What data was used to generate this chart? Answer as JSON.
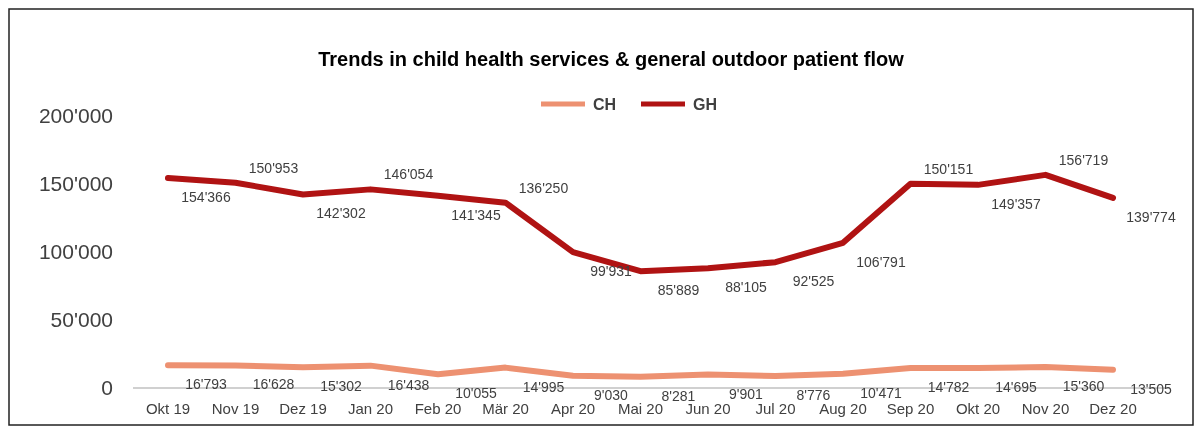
{
  "chart_data": {
    "type": "line",
    "title": "Trends in child health services & general outdoor patient flow",
    "categories": [
      "Okt 19",
      "Nov 19",
      "Dez 19",
      "Jan 20",
      "Feb 20",
      "Mär 20",
      "Apr 20",
      "Mai 20",
      "Jun 20",
      "Jul 20",
      "Aug 20",
      "Sep 20",
      "Okt 20",
      "Nov 20",
      "Dez 20"
    ],
    "series": [
      {
        "name": "CH",
        "color": "#ed9171",
        "values": [
          16793,
          16628,
          15302,
          16438,
          10055,
          14995,
          9030,
          8281,
          9901,
          8776,
          10471,
          14782,
          14695,
          15360,
          13505
        ],
        "value_labels": [
          "16'793",
          "16'628",
          "15'302",
          "16'438",
          "10'055",
          "14'995",
          "9'030",
          "8'281",
          "9'901",
          "8'776",
          "10'471",
          "14'782",
          "14'695",
          "15'360",
          "13'505"
        ]
      },
      {
        "name": "GH",
        "color": "#b01313",
        "values": [
          154366,
          150953,
          142302,
          146054,
          141345,
          136250,
          99931,
          85889,
          88105,
          92525,
          106791,
          150151,
          149357,
          156719,
          139774
        ],
        "value_labels": [
          "154'366",
          "150'953",
          "142'302",
          "146'054",
          "141'345",
          "136'250",
          "99'931",
          "85'889",
          "88'105",
          "92'525",
          "106'791",
          "150'151",
          "149'357",
          "156'719",
          "139'774"
        ]
      }
    ],
    "ylim": [
      0,
      200000
    ],
    "yticks": [
      {
        "value": 0,
        "label": "0"
      },
      {
        "value": 50000,
        "label": "50'000"
      },
      {
        "value": 100000,
        "label": "100'000"
      },
      {
        "value": 150000,
        "label": "150'000"
      },
      {
        "value": 200000,
        "label": "200'000"
      }
    ],
    "legend": "top",
    "marker": "none",
    "line_style": "solid"
  }
}
